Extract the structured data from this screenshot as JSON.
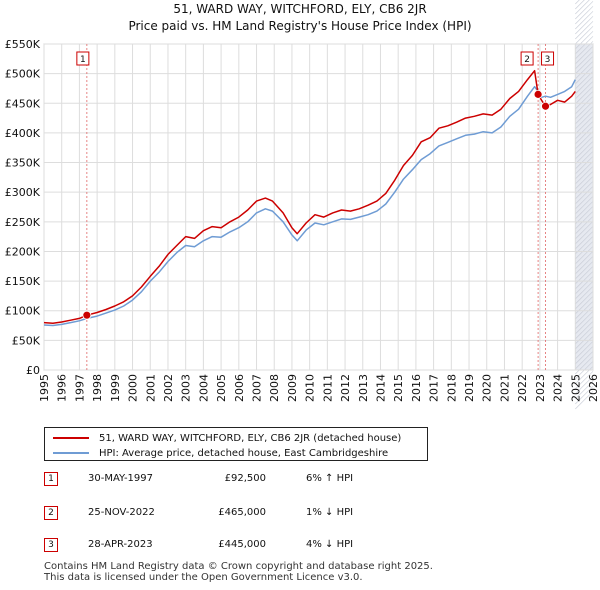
{
  "chart_data": {
    "type": "line",
    "title": "51, WARD WAY, WITCHFORD, ELY, CB6 2JR",
    "subtitle": "Price paid vs. HM Land Registry's House Price Index (HPI)",
    "xlim": [
      1995,
      2026
    ],
    "ylim": [
      0,
      550000
    ],
    "x_ticks": [
      "1995",
      "1996",
      "1997",
      "1998",
      "1999",
      "2000",
      "2001",
      "2002",
      "2003",
      "2004",
      "2005",
      "2006",
      "2007",
      "2008",
      "2009",
      "2010",
      "2011",
      "2012",
      "2013",
      "2014",
      "2015",
      "2016",
      "2017",
      "2018",
      "2019",
      "2020",
      "2021",
      "2022",
      "2023",
      "2024",
      "2025",
      "2026"
    ],
    "y_ticks": [
      {
        "value": 0,
        "label": "£0"
      },
      {
        "value": 50000,
        "label": "£50K"
      },
      {
        "value": 100000,
        "label": "£100K"
      },
      {
        "value": 150000,
        "label": "£150K"
      },
      {
        "value": 200000,
        "label": "£200K"
      },
      {
        "value": 250000,
        "label": "£250K"
      },
      {
        "value": 300000,
        "label": "£300K"
      },
      {
        "value": 350000,
        "label": "£350K"
      },
      {
        "value": 400000,
        "label": "£400K"
      },
      {
        "value": 450000,
        "label": "£450K"
      },
      {
        "value": 500000,
        "label": "£500K"
      },
      {
        "value": 550000,
        "label": "£550K"
      }
    ],
    "grid": true,
    "shaded_region_from": 2025.0,
    "series": [
      {
        "name": "51, WARD WAY, WITCHFORD, ELY, CB6 2JR (detached house)",
        "color": "#cc0000",
        "x": [
          1995,
          1995.5,
          1996,
          1996.5,
          1997,
          1997.42,
          1998,
          1998.5,
          1999,
          1999.5,
          2000,
          2000.5,
          2001,
          2001.5,
          2002,
          2002.5,
          2003,
          2003.5,
          2004,
          2004.5,
          2005,
          2005.5,
          2006,
          2006.5,
          2007,
          2007.5,
          2007.9,
          2008.5,
          2009,
          2009.3,
          2009.8,
          2010.3,
          2010.8,
          2011.3,
          2011.8,
          2012.3,
          2012.8,
          2013.3,
          2013.8,
          2014.3,
          2014.8,
          2015.3,
          2015.8,
          2016.3,
          2016.8,
          2017.3,
          2017.8,
          2018.3,
          2018.8,
          2019.3,
          2019.8,
          2020.3,
          2020.8,
          2021.3,
          2021.8,
          2022.3,
          2022.7,
          2022.9,
          2023.1,
          2023.32,
          2023.6,
          2024,
          2024.4,
          2024.8,
          2025.0
        ],
        "y": [
          80000,
          79000,
          81000,
          84000,
          87000,
          92500,
          97000,
          102000,
          108000,
          115000,
          125000,
          140000,
          158000,
          175000,
          195000,
          210000,
          225000,
          222000,
          235000,
          242000,
          240000,
          250000,
          258000,
          270000,
          285000,
          290000,
          285000,
          265000,
          240000,
          230000,
          248000,
          262000,
          258000,
          265000,
          270000,
          268000,
          272000,
          278000,
          285000,
          298000,
          320000,
          345000,
          362000,
          385000,
          392000,
          408000,
          412000,
          418000,
          425000,
          428000,
          432000,
          430000,
          440000,
          458000,
          470000,
          490000,
          505000,
          465000,
          455000,
          445000,
          448000,
          455000,
          452000,
          462000,
          470000
        ]
      },
      {
        "name": "HPI: Average price, detached house, East Cambridgeshire",
        "color": "#6f9cd4",
        "x": [
          1995,
          1995.5,
          1996,
          1996.5,
          1997,
          1997.42,
          1998,
          1998.5,
          1999,
          1999.5,
          2000,
          2000.5,
          2001,
          2001.5,
          2002,
          2002.5,
          2003,
          2003.5,
          2004,
          2004.5,
          2005,
          2005.5,
          2006,
          2006.5,
          2007,
          2007.5,
          2007.9,
          2008.5,
          2009,
          2009.3,
          2009.8,
          2010.3,
          2010.8,
          2011.3,
          2011.8,
          2012.3,
          2012.8,
          2013.3,
          2013.8,
          2014.3,
          2014.8,
          2015.3,
          2015.8,
          2016.3,
          2016.8,
          2017.3,
          2017.8,
          2018.3,
          2018.8,
          2019.3,
          2019.8,
          2020.3,
          2020.8,
          2021.3,
          2021.8,
          2022.3,
          2022.7,
          2022.9,
          2023.1,
          2023.32,
          2023.6,
          2024,
          2024.4,
          2024.8,
          2025.0
        ],
        "y": [
          76000,
          75000,
          77000,
          80000,
          83000,
          87000,
          91000,
          96000,
          101000,
          108000,
          118000,
          132000,
          150000,
          165000,
          183000,
          198000,
          210000,
          208000,
          218000,
          225000,
          224000,
          233000,
          240000,
          250000,
          265000,
          272000,
          268000,
          250000,
          228000,
          218000,
          236000,
          248000,
          245000,
          250000,
          255000,
          254000,
          258000,
          262000,
          268000,
          280000,
          300000,
          322000,
          338000,
          355000,
          365000,
          378000,
          384000,
          390000,
          396000,
          398000,
          402000,
          400000,
          410000,
          428000,
          440000,
          462000,
          478000,
          470000,
          460000,
          462000,
          460000,
          465000,
          470000,
          478000,
          490000
        ]
      }
    ],
    "sales": [
      {
        "marker": "1",
        "x": 1997.42,
        "y": 92500
      },
      {
        "marker": "2",
        "x": 2022.9,
        "y": 465000
      },
      {
        "marker": "3",
        "x": 2023.32,
        "y": 445000
      }
    ]
  },
  "legend": {
    "property_label": "51, WARD WAY, WITCHFORD, ELY, CB6 2JR (detached house)",
    "hpi_label": "HPI: Average price, detached house, East Cambridgeshire"
  },
  "sales_table": [
    {
      "num": "1",
      "date": "30-MAY-1997",
      "price": "£92,500",
      "hpi": "6% ↑ HPI"
    },
    {
      "num": "2",
      "date": "25-NOV-2022",
      "price": "£465,000",
      "hpi": "1% ↓ HPI"
    },
    {
      "num": "3",
      "date": "28-APR-2023",
      "price": "£445,000",
      "hpi": "4% ↓ HPI"
    }
  ],
  "footer": {
    "line1": "Contains HM Land Registry data © Crown copyright and database right 2025.",
    "line2": "This data is licensed under the Open Government Licence v3.0."
  },
  "colors": {
    "property": "#cc0000",
    "hpi": "#6f9cd4"
  }
}
